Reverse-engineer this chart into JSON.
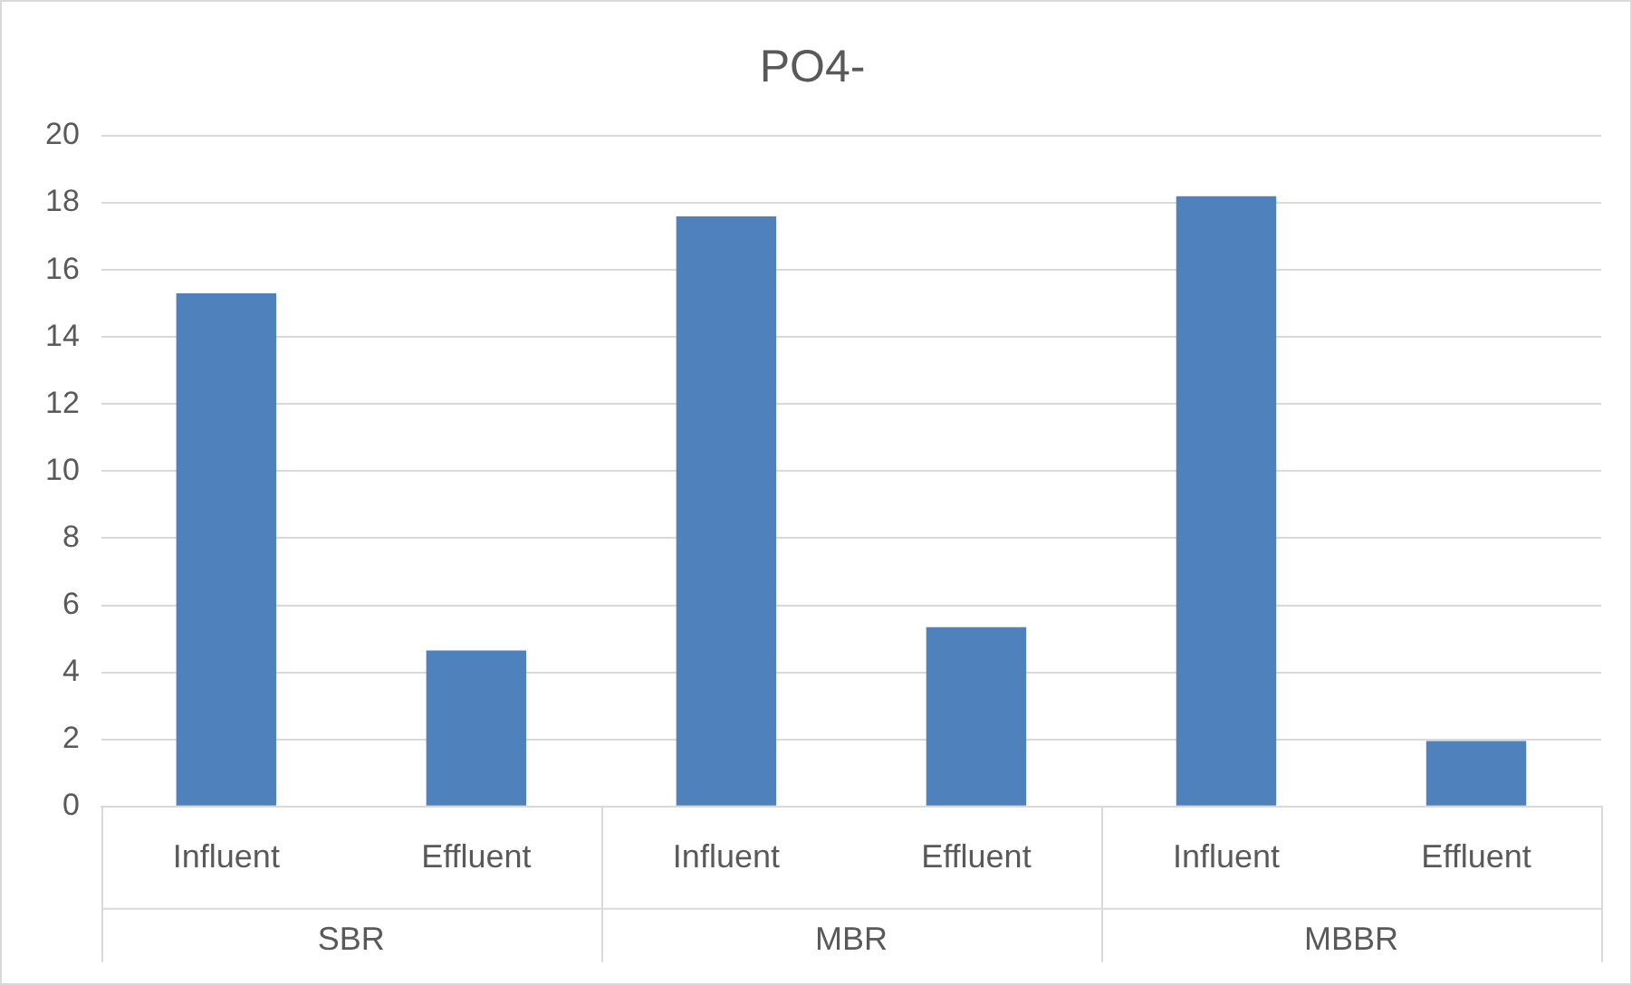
{
  "chart_data": {
    "type": "bar",
    "title": "PO4-",
    "categories": [
      "Influent",
      "Effluent",
      "Influent",
      "Effluent",
      "Influent",
      "Effluent"
    ],
    "values": [
      15.3,
      4.65,
      17.6,
      5.35,
      18.2,
      1.95
    ],
    "color": "#4f81bd",
    "ylim": [
      0,
      20
    ],
    "yticks": [
      0,
      2,
      4,
      6,
      8,
      10,
      12,
      14,
      16,
      18,
      20
    ],
    "grid": "y",
    "annotations": [
      "SBR",
      "MBR",
      "MBBR"
    ]
  }
}
